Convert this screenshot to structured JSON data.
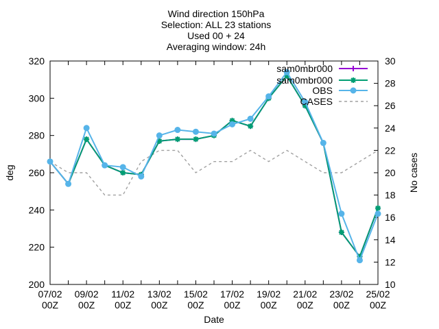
{
  "chart_data": {
    "type": "line",
    "title_lines": [
      "Wind direction 150hPa",
      "Selection: ALL     23 stations",
      "Used 00 + 24",
      "Averaging window: 24h"
    ],
    "xlabel": "Date",
    "ylabel": "deg",
    "y2label": "No cases",
    "x": [
      "07/02 00Z",
      "08/02 00Z",
      "09/02 00Z",
      "10/02 00Z",
      "11/02 00Z",
      "12/02 00Z",
      "13/02 00Z",
      "14/02 00Z",
      "15/02 00Z",
      "16/02 00Z",
      "17/02 00Z",
      "18/02 00Z",
      "19/02 00Z",
      "20/02 00Z",
      "21/02 00Z",
      "22/02 00Z",
      "23/02 00Z",
      "24/02 00Z",
      "25/02 00Z"
    ],
    "xticks": [
      {
        "top": "07/02",
        "bottom": "00Z"
      },
      {
        "top": "09/02",
        "bottom": "00Z"
      },
      {
        "top": "11/02",
        "bottom": "00Z"
      },
      {
        "top": "13/02",
        "bottom": "00Z"
      },
      {
        "top": "15/02",
        "bottom": "00Z"
      },
      {
        "top": "17/02",
        "bottom": "00Z"
      },
      {
        "top": "19/02",
        "bottom": "00Z"
      },
      {
        "top": "21/02",
        "bottom": "00Z"
      },
      {
        "top": "23/02",
        "bottom": "00Z"
      },
      {
        "top": "25/02",
        "bottom": "00Z"
      }
    ],
    "ylim": [
      200,
      320
    ],
    "yticks": [
      200,
      220,
      240,
      260,
      280,
      300,
      320
    ],
    "y2lim": [
      10,
      30
    ],
    "y2ticks": [
      10,
      12,
      14,
      16,
      18,
      20,
      22,
      24,
      26,
      28,
      30
    ],
    "legend_position": "top-right",
    "series": [
      {
        "name": "sam0mbr000",
        "color": "#9400d3",
        "marker": "plus",
        "axis": "y",
        "values": [
          266,
          254,
          278,
          264,
          260,
          259,
          277,
          278,
          278,
          280,
          288,
          285,
          300,
          312,
          296,
          276,
          228,
          215,
          241
        ]
      },
      {
        "name": "sam0mbr000",
        "color": "#009e73",
        "marker": "star",
        "axis": "y",
        "values": [
          266,
          254,
          278,
          264,
          260,
          259,
          277,
          278,
          278,
          280,
          288,
          285,
          300,
          312,
          296,
          276,
          228,
          215,
          241
        ]
      },
      {
        "name": "OBS",
        "color": "#56b4e9",
        "marker": "filled-circle",
        "axis": "y",
        "values": [
          266,
          254,
          284,
          264,
          263,
          258,
          280,
          283,
          282,
          281,
          286,
          289,
          301,
          314,
          298,
          276,
          238,
          213,
          238
        ]
      },
      {
        "name": "CASES",
        "color": "#a0a0a0",
        "marker": "none",
        "dashed": true,
        "axis": "y2",
        "values": [
          21,
          20,
          20,
          18,
          18,
          21,
          22,
          22,
          20,
          21,
          21,
          22,
          21,
          22,
          21,
          20,
          20,
          21,
          22
        ]
      }
    ],
    "grid": false
  }
}
